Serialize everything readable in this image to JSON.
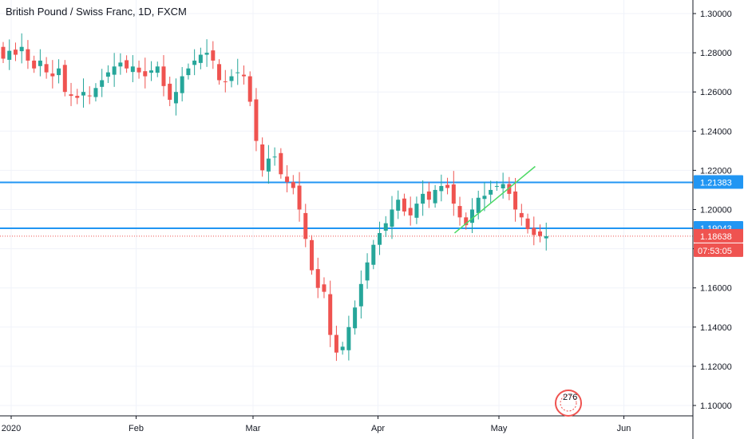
{
  "title": "British Pound / Swiss Franc, 1D, FXCM",
  "colors": {
    "up": "#26a69a",
    "down": "#ef5350",
    "level": "#2196f3",
    "trend": "#4cd964",
    "grid": "#e0e3eb",
    "text": "#131722"
  },
  "chart_data": {
    "type": "candlestick",
    "symbol": "GBPCHF",
    "interval": "1D",
    "source": "FXCM",
    "ylim": [
      1.09,
      1.305
    ],
    "yticks": [
      "1.30000",
      "1.28000",
      "1.26000",
      "1.24000",
      "1.22000",
      "1.20000",
      "1.18000",
      "1.16000",
      "1.14000",
      "1.12000",
      "1.10000"
    ],
    "xticks": [
      {
        "label": "2020",
        "date": "2020-01-01"
      },
      {
        "label": "Feb",
        "date": "2020-02-01"
      },
      {
        "label": "Mar",
        "date": "2020-03-01"
      },
      {
        "label": "Apr",
        "date": "2020-04-01"
      },
      {
        "label": "May",
        "date": "2020-05-01"
      },
      {
        "label": "Jun",
        "date": "2020-06-01"
      }
    ],
    "x_range": [
      "2019-12-31",
      "2020-06-30"
    ],
    "closes": [
      1.277,
      1.281,
      1.279,
      1.283,
      1.276,
      1.272,
      1.276,
      1.27,
      1.268,
      1.272,
      1.26,
      1.258,
      1.257,
      1.26,
      1.258,
      1.262,
      1.266,
      1.27,
      1.273,
      1.275,
      1.272,
      1.273,
      1.27,
      1.268,
      1.271,
      1.273,
      1.263,
      1.256,
      1.26,
      1.268,
      1.272,
      1.276,
      1.279,
      1.28,
      1.276,
      1.266,
      1.265,
      1.268,
      1.27,
      1.268,
      1.255,
      1.235,
      1.22,
      1.226,
      1.227,
      1.218,
      1.214,
      1.211,
      1.2,
      1.185,
      1.169,
      1.16,
      1.158,
      1.136,
      1.127,
      1.13,
      1.14,
      1.15,
      1.162,
      1.173,
      1.182,
      1.188,
      1.193,
      1.2,
      1.205,
      1.199,
      1.197,
      1.203,
      1.208,
      1.205,
      1.21,
      1.212,
      1.211,
      1.203,
      1.196,
      1.192,
      1.2,
      1.206,
      1.207,
      1.21,
      1.212,
      1.213,
      1.208,
      1.2,
      1.196,
      1.19,
      1.187,
      1.1865,
      1.1864
    ],
    "levels": [
      {
        "label": "1.21383",
        "value": 1.21383,
        "style": "solid",
        "color": "#2196f3"
      },
      {
        "label": "1.19043",
        "value": 1.19043,
        "style": "solid",
        "color": "#2196f3"
      },
      {
        "label": "1.18638",
        "value": 1.18638,
        "style": "dotted",
        "color": "#ef5350"
      }
    ],
    "countdown": "07:53:05",
    "trendline": {
      "from": {
        "date": "2020-04-20",
        "value": 1.188
      },
      "to": {
        "date": "2020-05-10",
        "value": 1.222
      }
    },
    "watermark": "276"
  }
}
